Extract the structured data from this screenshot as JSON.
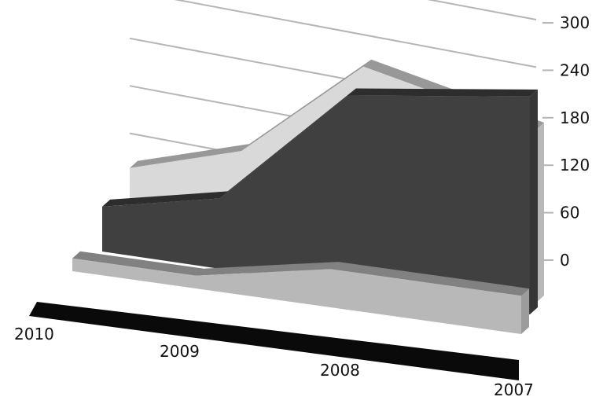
{
  "chart_data": {
    "type": "area",
    "categories": [
      "2010",
      "2009",
      "2008",
      "2007"
    ],
    "series": [
      {
        "values": [
          48,
          77,
          160,
          135
        ],
        "color": "#d9d9d9"
      },
      {
        "values": [
          35,
          55,
          150,
          170
        ],
        "color": "#404040"
      },
      {
        "values": [
          10,
          10,
          30,
          30
        ],
        "color": "#b8b8b8"
      }
    ],
    "ylim": [
      0,
      300
    ],
    "yticks": [
      "300",
      "240",
      "180",
      "120",
      "60",
      "0"
    ],
    "grid": true,
    "legend": "none",
    "projection": "3d"
  }
}
